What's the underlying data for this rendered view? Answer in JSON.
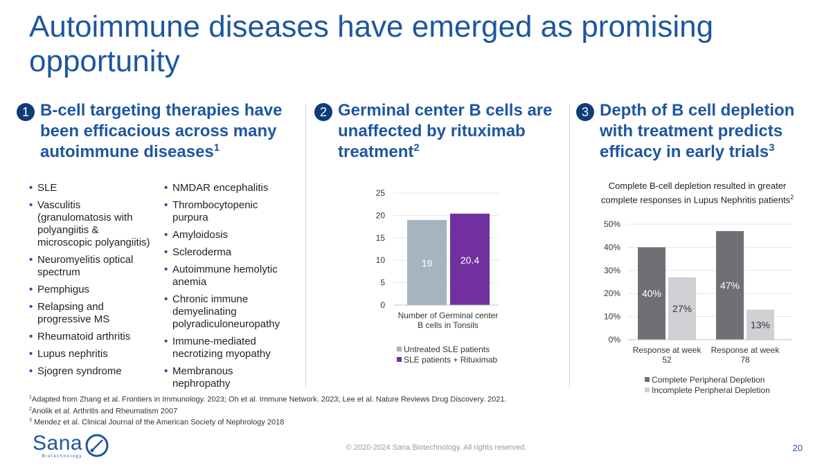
{
  "slide": {
    "title": "Autoimmune diseases have emerged as promising opportunity",
    "page_number": "20",
    "copyright": "© 2020-2024 Sana Biotechnology. All rights reserved."
  },
  "columns": [
    {
      "number": "1",
      "heading": "B-cell targeting therapies have been efficacious across many autoimmune diseases",
      "ref": "1"
    },
    {
      "number": "2",
      "heading": "Germinal center B cells are unaffected by rituximab treatment",
      "ref": "2"
    },
    {
      "number": "3",
      "heading": "Depth of B cell depletion with treatment predicts efficacy in early trials",
      "ref": "3"
    }
  ],
  "diseases_left": [
    "SLE",
    "Vasculitis (granulomatosis with polyangiitis & microscopic polyangiitis)",
    "Neuromyelitis optical spectrum",
    "Pemphigus",
    "Relapsing and progressive MS",
    "Rheumatoid arthritis",
    "Lupus nephritis",
    "Sjogren syndrome"
  ],
  "diseases_right": [
    "NMDAR encephalitis",
    "Thrombocytopenic purpura",
    "Amyloidosis",
    "Scleroderma",
    "Autoimmune hemolytic anemia",
    "Chronic immune demyelinating polyradiculoneuropathy",
    "Immune-mediated necrotizing myopathy",
    "Membranous nephropathy"
  ],
  "chart_data": [
    {
      "type": "bar",
      "title": "",
      "categories": [
        "Number of Germinal center B cells in Tonsils"
      ],
      "series": [
        {
          "name": "Untreated SLE patients",
          "values": [
            19
          ],
          "labels": [
            "19"
          ],
          "color": "#a6b4c0"
        },
        {
          "name": "SLE patients + Rituximab",
          "values": [
            20.4
          ],
          "labels": [
            "20.4"
          ],
          "color": "#7030a0"
        }
      ],
      "yticks": [
        "0",
        "5",
        "10",
        "15",
        "20",
        "25"
      ],
      "ylim": [
        0,
        25
      ],
      "legend": "bottom"
    },
    {
      "type": "bar",
      "title": "Complete B-cell depletion resulted in greater complete responses in Lupus Nephritis patients",
      "title_ref": "2",
      "categories": [
        "Response at week 52",
        "Response at week 78"
      ],
      "series": [
        {
          "name": "Complete Peripheral Depletion",
          "values": [
            40,
            47
          ],
          "labels": [
            "40%",
            "47%"
          ],
          "color": "#716f76"
        },
        {
          "name": "Incomplete Peripheral Depletion",
          "values": [
            27,
            13
          ],
          "labels": [
            "27%",
            "13%"
          ],
          "color": "#d0d0d4"
        }
      ],
      "yticks": [
        "0%",
        "10%",
        "20%",
        "30%",
        "40%",
        "50%"
      ],
      "ylim": [
        0,
        50
      ],
      "legend": "bottom"
    }
  ],
  "footnotes": [
    {
      "num": "1",
      "text": "Adapted from Zhang et al. Frontiers in Immunology. 2023; Oh et al. Immune Network. 2023; Lee et al. Nature Reviews Drug Discovery. 2021."
    },
    {
      "num": "2",
      "text": "Anolik et al. Arthritis and Rheumatism 2007"
    },
    {
      "num": "3",
      "text": " Mendez et al. Clinical Journal of the American Society of Nephrology 2018"
    }
  ],
  "logo": {
    "word": "Sana",
    "sub": "Biotechnology"
  },
  "colors": {
    "brand_blue": "#1e56a0",
    "navy": "#0e3c7a"
  }
}
